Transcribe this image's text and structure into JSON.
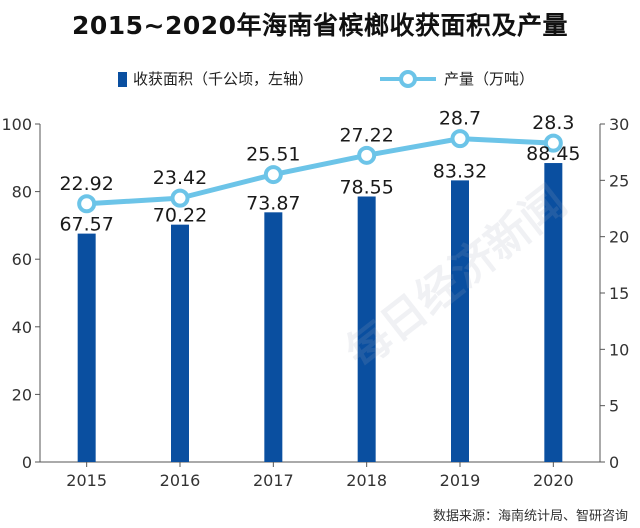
{
  "title": "2015~2020年海南省槟榔收获面积及产量",
  "legend": {
    "bar_label": "收获面积（千公顷，左轴）",
    "line_label": "产量（万吨）"
  },
  "source": "数据来源：海南统计局、智研咨询",
  "watermark": "每日经济新闻",
  "colors": {
    "bar": "#0a4fa0",
    "line": "#6cc4e8",
    "axis": "#555555"
  },
  "chart_data": {
    "type": "bar+line",
    "title": "2015~2020年海南省槟榔收获面积及产量",
    "categories": [
      "2015",
      "2016",
      "2017",
      "2018",
      "2019",
      "2020"
    ],
    "series": [
      {
        "name": "收获面积（千公顷，左轴）",
        "type": "bar",
        "axis": "left",
        "values": [
          67.57,
          70.22,
          73.87,
          78.55,
          83.32,
          88.45
        ],
        "labels": [
          "67.57",
          "70.22",
          "73.87",
          "78.55",
          "83.32",
          "88.45"
        ]
      },
      {
        "name": "产量（万吨）",
        "type": "line",
        "axis": "right",
        "values": [
          22.92,
          23.42,
          25.51,
          27.22,
          28.7,
          28.3
        ],
        "labels": [
          "22.92",
          "23.42",
          "25.51",
          "27.22",
          "28.7",
          "28.3"
        ]
      }
    ],
    "y_left": {
      "min": 0,
      "max": 100,
      "ticks": [
        "0",
        "20",
        "40",
        "60",
        "80",
        "100"
      ]
    },
    "y_right": {
      "min": 0,
      "max": 30,
      "ticks": [
        "0",
        "5",
        "10",
        "15",
        "20",
        "25",
        "30"
      ]
    },
    "grid": false,
    "legend_position": "top"
  }
}
